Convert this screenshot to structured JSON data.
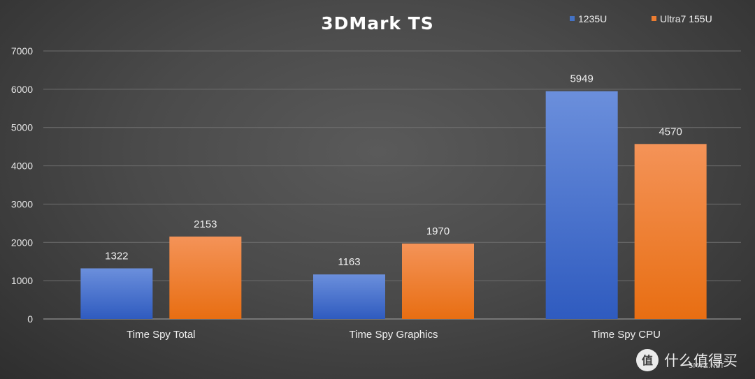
{
  "chart_data": {
    "type": "bar",
    "title": "3DMark TS",
    "categories": [
      "Time Spy Total",
      "Time Spy Graphics",
      "Time Spy CPU"
    ],
    "series": [
      {
        "name": "1235U",
        "values": [
          1322,
          1163,
          5949
        ]
      },
      {
        "name": "Ultra7 155U",
        "values": [
          2153,
          1970,
          4570
        ]
      }
    ],
    "xlabel": "",
    "ylabel": "",
    "ylim": [
      0,
      7000
    ],
    "yticks": [
      0,
      1000,
      2000,
      3000,
      4000,
      5000,
      6000,
      7000
    ],
    "grid": true,
    "legend_position": "top-right",
    "show_data_labels": true
  },
  "colors": {
    "series": [
      "#3f6fd1",
      "#f07d2c"
    ],
    "series_top": [
      "#6b8fdc",
      "#f49358"
    ],
    "series_bottom": [
      "#2f5bbf",
      "#e86e12"
    ]
  },
  "watermark": {
    "icon": "smzdm-logo-icon",
    "text": "什么值得买",
    "subtext": "SMYZ.NET"
  }
}
